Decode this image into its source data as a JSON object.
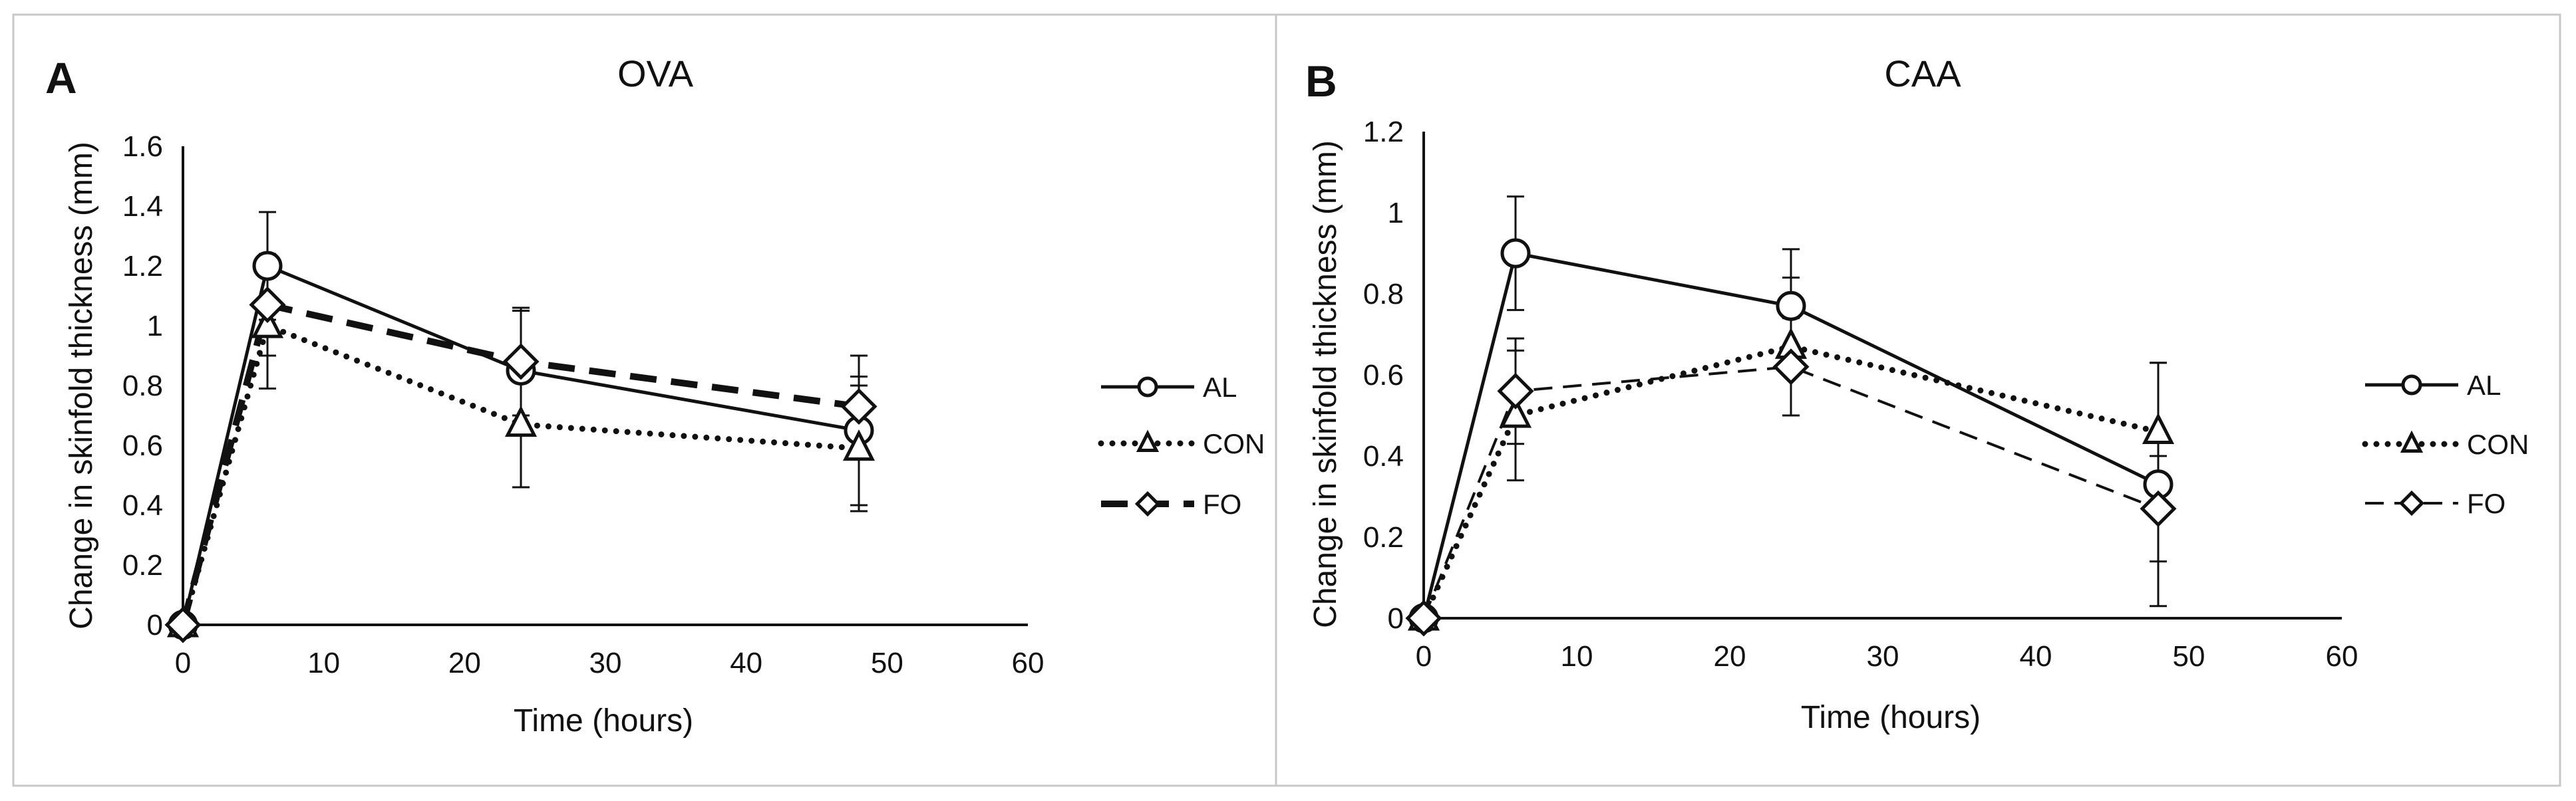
{
  "chart_data": [
    {
      "panel": "A",
      "type": "line",
      "title": "OVA",
      "xlabel": "Time (hours)",
      "ylabel": "Change in skinfold thickness (mm)",
      "xlim": [
        0,
        60
      ],
      "ylim": [
        0,
        1.6
      ],
      "xticks": [
        "0",
        "10",
        "20",
        "30",
        "40",
        "50",
        "60"
      ],
      "yticks": [
        "0",
        "0.2",
        "0.4",
        "0.6",
        "0.8",
        "1",
        "1.2",
        "1.4",
        "1.6"
      ],
      "xtick_values": [
        0,
        10,
        20,
        30,
        40,
        50,
        60
      ],
      "ytick_values": [
        0,
        0.2,
        0.4,
        0.6,
        0.8,
        1.0,
        1.2,
        1.4,
        1.6
      ],
      "legend_position": "right",
      "series": [
        {
          "name": "AL",
          "line": "solid",
          "marker": "circle",
          "x": [
            0,
            6,
            24,
            48
          ],
          "y": [
            0,
            1.2,
            0.85,
            0.65
          ],
          "err": [
            0,
            0.18,
            0.2,
            0.25
          ]
        },
        {
          "name": "CON",
          "line": "dotted",
          "marker": "triangle",
          "x": [
            0,
            6,
            24,
            48
          ],
          "y": [
            0,
            1.0,
            0.67,
            0.59
          ],
          "err": [
            0,
            0.21,
            0.21,
            0.21
          ]
        },
        {
          "name": "FO",
          "line": "dashed-thick",
          "marker": "diamond",
          "x": [
            0,
            6,
            24,
            48
          ],
          "y": [
            0,
            1.07,
            0.88,
            0.73
          ],
          "err": [
            0,
            0.17,
            0.18,
            0.1
          ]
        }
      ]
    },
    {
      "panel": "B",
      "type": "line",
      "title": "CAA",
      "xlabel": "Time (hours)",
      "ylabel": "Change in skinfold thickness (mm)",
      "xlim": [
        0,
        60
      ],
      "ylim": [
        0,
        1.2
      ],
      "xticks": [
        "0",
        "10",
        "20",
        "30",
        "40",
        "50",
        "60"
      ],
      "yticks": [
        "0",
        "0.2",
        "0.4",
        "0.6",
        "0.8",
        "1",
        "1.2"
      ],
      "xtick_values": [
        0,
        10,
        20,
        30,
        40,
        50,
        60
      ],
      "ytick_values": [
        0,
        0.2,
        0.4,
        0.6,
        0.8,
        1.0,
        1.2
      ],
      "legend_position": "right",
      "series": [
        {
          "name": "AL",
          "line": "solid",
          "marker": "circle",
          "x": [
            0,
            6,
            24,
            48
          ],
          "y": [
            0,
            0.9,
            0.77,
            0.33
          ],
          "err": [
            0,
            0.14,
            0.14,
            0.3
          ]
        },
        {
          "name": "CON",
          "line": "dotted",
          "marker": "triangle",
          "x": [
            0,
            6,
            24,
            48
          ],
          "y": [
            0,
            0.5,
            0.67,
            0.46
          ],
          "err": [
            0,
            0.16,
            0.17,
            0.17
          ]
        },
        {
          "name": "FO",
          "line": "dashed",
          "marker": "diamond",
          "x": [
            0,
            6,
            24,
            48
          ],
          "y": [
            0,
            0.56,
            0.62,
            0.27
          ],
          "err": [
            0,
            0.13,
            0.12,
            0.13
          ]
        }
      ]
    }
  ]
}
